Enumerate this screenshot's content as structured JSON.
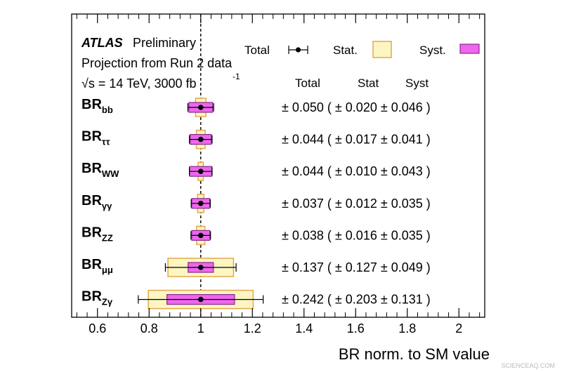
{
  "chart_data": {
    "type": "forest",
    "header": {
      "experiment": "ATLAS",
      "status": "Preliminary",
      "line2": "Projection from Run 2 data",
      "line3_sqrt": "√s = 14 TeV, 3000 fb",
      "line3_sup": "-1"
    },
    "legend": {
      "total": "Total",
      "stat": "Stat.",
      "syst": "Syst.",
      "placement": "top-right"
    },
    "columns": {
      "total": "Total",
      "stat": "Stat",
      "syst": "Syst"
    },
    "xlabel": "BR norm. to SM value",
    "xlim": [
      0.5,
      2.1
    ],
    "xticks": [
      "0.6",
      "0.8",
      "1",
      "1.2",
      "1.4",
      "1.6",
      "1.8",
      "2"
    ],
    "reference_line": 1.0,
    "colors": {
      "stat_fill": "#fdf6c3",
      "stat_edge": "#e2a84a",
      "syst_fill": "#ee66ee",
      "syst_edge": "#8a2a8a",
      "total": "#000000"
    },
    "rows": [
      {
        "label": "BR",
        "sub": "bb",
        "central": 1.0,
        "total": 0.05,
        "stat": 0.02,
        "syst": 0.046,
        "text": "± 0.050 ( ± 0.020 ± 0.046 )"
      },
      {
        "label": "BR",
        "sub": "ττ",
        "central": 1.0,
        "total": 0.044,
        "stat": 0.017,
        "syst": 0.041,
        "text": "± 0.044 ( ± 0.017 ± 0.041 )"
      },
      {
        "label": "BR",
        "sub": "WW",
        "central": 1.0,
        "total": 0.044,
        "stat": 0.01,
        "syst": 0.043,
        "text": "± 0.044 ( ± 0.010 ± 0.043 )"
      },
      {
        "label": "BR",
        "sub": "γγ",
        "central": 1.0,
        "total": 0.037,
        "stat": 0.012,
        "syst": 0.035,
        "text": "± 0.037 ( ± 0.012 ± 0.035 )"
      },
      {
        "label": "BR",
        "sub": "ZZ",
        "central": 1.0,
        "total": 0.038,
        "stat": 0.016,
        "syst": 0.035,
        "text": "± 0.038 ( ± 0.016 ± 0.035 )"
      },
      {
        "label": "BR",
        "sub": "μμ",
        "central": 1.0,
        "total": 0.137,
        "stat": 0.127,
        "syst": 0.049,
        "text": "± 0.137 ( ± 0.127 ± 0.049 )"
      },
      {
        "label": "BR",
        "sub": "Zγ",
        "central": 1.0,
        "total": 0.242,
        "stat": 0.203,
        "syst": 0.131,
        "text": "± 0.242 ( ± 0.203 ± 0.131 )"
      }
    ],
    "watermark": "SCIENCEAQ.COM"
  }
}
